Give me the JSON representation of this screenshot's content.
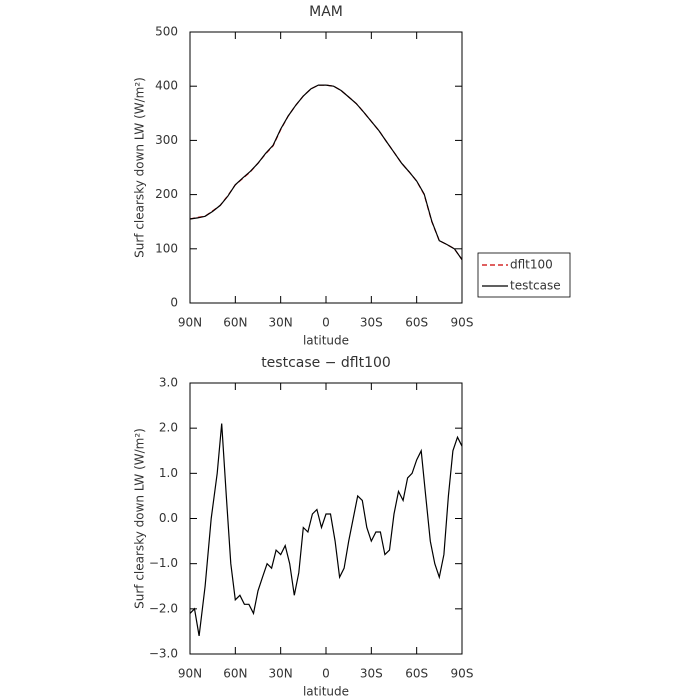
{
  "chart_data": [
    {
      "type": "line",
      "title": "MAM",
      "xlabel": "latitude",
      "ylabel": "Surf clearsky down LW (W/m²)",
      "x": [
        90,
        85,
        80,
        75,
        70,
        65,
        60,
        55,
        50,
        45,
        40,
        35,
        30,
        25,
        20,
        15,
        10,
        5,
        0,
        -5,
        -10,
        -15,
        -20,
        -25,
        -30,
        -35,
        -40,
        -45,
        -50,
        -55,
        -60,
        -65,
        -70,
        -75,
        -80,
        -85,
        -90
      ],
      "series": [
        {
          "name": "dflt100",
          "color": "#cc0000",
          "dash": true,
          "values": [
            155,
            158,
            160,
            170,
            180,
            198,
            218,
            230,
            242,
            258,
            275,
            290,
            320,
            345,
            365,
            382,
            395,
            402,
            402,
            400,
            392,
            380,
            368,
            352,
            335,
            318,
            298,
            278,
            258,
            242,
            225,
            200,
            150,
            115,
            108,
            100,
            80
          ]
        },
        {
          "name": "testcase",
          "color": "#000000",
          "dash": false,
          "values": [
            155,
            157,
            160,
            169,
            180,
            197,
            218,
            231,
            243,
            258,
            276,
            291,
            321,
            345,
            365,
            382,
            395,
            402,
            402,
            400,
            392,
            380,
            368,
            352,
            335,
            318,
            298,
            278,
            258,
            242,
            225,
            201,
            151,
            115,
            108,
            100,
            80
          ]
        }
      ],
      "xlim": [
        90,
        -90
      ],
      "xticks": [
        {
          "value": 90,
          "label": "90N"
        },
        {
          "value": 60,
          "label": "60N"
        },
        {
          "value": 30,
          "label": "30N"
        },
        0,
        {
          "value": -30,
          "label": "30S"
        },
        {
          "value": -60,
          "label": "60S"
        },
        {
          "value": -90,
          "label": "90S"
        }
      ],
      "ylim": [
        0,
        500
      ],
      "yticks": [
        0,
        100,
        200,
        300,
        400,
        500
      ],
      "legend": "right"
    },
    {
      "type": "line",
      "title": "testcase − dflt100",
      "xlabel": "latitude",
      "ylabel": "Surf clearsky down LW (W/m²)",
      "x": [
        90,
        87,
        84,
        80,
        76,
        72,
        69,
        66,
        63,
        60,
        57,
        54,
        51,
        48,
        45,
        42,
        39,
        36,
        33,
        30,
        27,
        24,
        21,
        18,
        15,
        12,
        9,
        6,
        3,
        0,
        -3,
        -6,
        -9,
        -12,
        -15,
        -18,
        -21,
        -24,
        -27,
        -30,
        -33,
        -36,
        -39,
        -42,
        -45,
        -48,
        -51,
        -54,
        -57,
        -60,
        -63,
        -66,
        -69,
        -72,
        -75,
        -78,
        -81,
        -84,
        -87,
        -90
      ],
      "series": [
        {
          "color": "#000000",
          "dash": false,
          "values": [
            -2.1,
            -2.0,
            -2.6,
            -1.5,
            0,
            1.0,
            2.1,
            0.5,
            -1.0,
            -1.8,
            -1.7,
            -1.9,
            -1.9,
            -2.1,
            -1.6,
            -1.3,
            -1.0,
            -1.1,
            -0.7,
            -0.8,
            -0.6,
            -1.0,
            -1.7,
            -1.2,
            -0.2,
            -0.3,
            0.1,
            0.2,
            -0.2,
            0.1,
            0.1,
            -0.5,
            -1.3,
            -1.1,
            -0.5,
            0,
            0.5,
            0.4,
            -0.2,
            -0.5,
            -0.3,
            -0.3,
            -0.8,
            -0.7,
            0.1,
            0.6,
            0.4,
            0.9,
            1.0,
            1.3,
            1.5,
            0.5,
            -0.5,
            -1.0,
            -1.3,
            -0.8,
            0.5,
            1.5,
            1.8,
            1.6
          ]
        }
      ],
      "xlim": [
        90,
        -90
      ],
      "xticks": [
        {
          "value": 90,
          "label": "90N"
        },
        {
          "value": 60,
          "label": "60N"
        },
        {
          "value": 30,
          "label": "30N"
        },
        0,
        {
          "value": -30,
          "label": "30S"
        },
        {
          "value": -60,
          "label": "60S"
        },
        {
          "value": -90,
          "label": "90S"
        }
      ],
      "ylim": [
        -3,
        3
      ],
      "yticks": [
        {
          "value": -3,
          "label": "−3.0"
        },
        {
          "value": -2,
          "label": "−2.0"
        },
        {
          "value": -1,
          "label": "−1.0"
        },
        {
          "value": 0,
          "label": "0.0"
        },
        {
          "value": 1,
          "label": "1.0"
        },
        {
          "value": 2,
          "label": "2.0"
        },
        {
          "value": 3,
          "label": "3.0"
        }
      ]
    }
  ]
}
